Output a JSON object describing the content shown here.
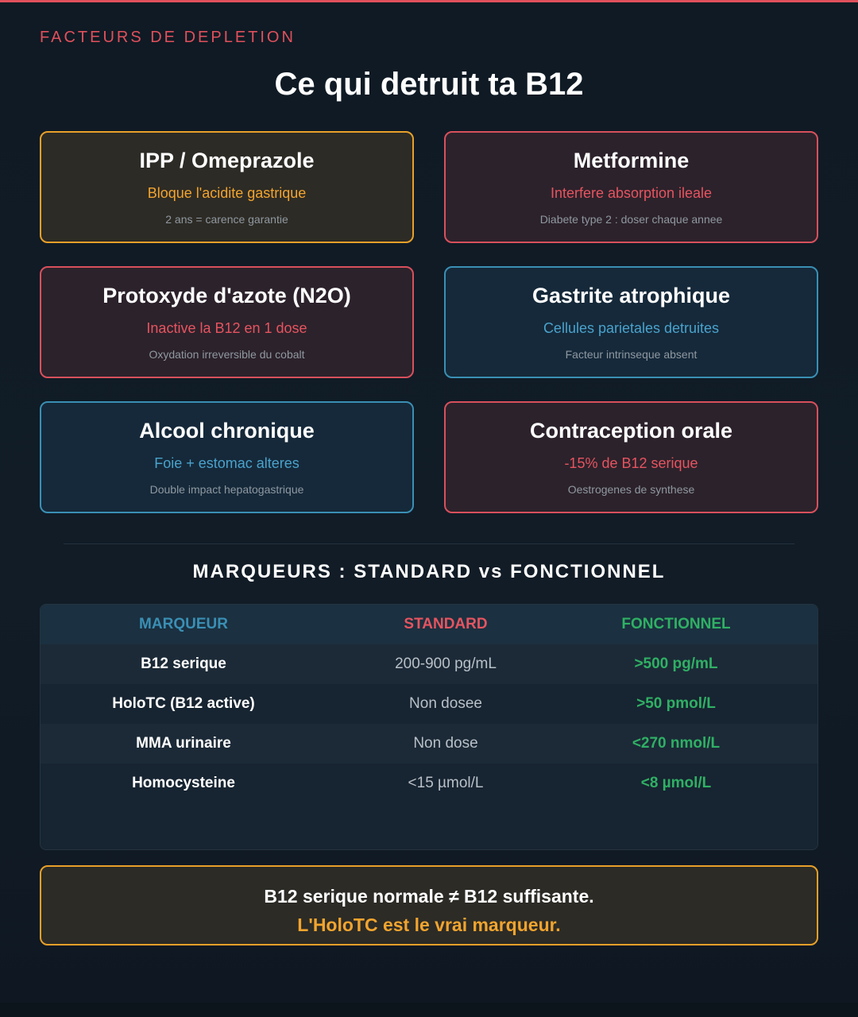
{
  "header": {
    "eyebrow": "FACTEURS DE DEPLETION",
    "title": "Ce qui detruit ta B12"
  },
  "cards": [
    {
      "title": "IPP / Omeprazole",
      "subtitle": "Bloque l'acidite gastrique",
      "note": "2 ans = carence garantie",
      "accent": "#e8a029"
    },
    {
      "title": "Metformine",
      "subtitle": "Interfere absorption ileale",
      "note": "Diabete type 2 : doser chaque annee",
      "accent": "#d8505c"
    },
    {
      "title": "Protoxyde d'azote (N2O)",
      "subtitle": "Inactive la B12 en 1 dose",
      "note": "Oxydation irreversible du cobalt",
      "accent": "#d8505c"
    },
    {
      "title": "Gastrite atrophique",
      "subtitle": "Cellules parietales detruites",
      "note": "Facteur intrinseque absent",
      "accent": "#3a8fb4"
    },
    {
      "title": "Alcool chronique",
      "subtitle": "Foie + estomac alteres",
      "note": "Double impact hepatogastrique",
      "accent": "#3a8fb4"
    },
    {
      "title": "Contraception orale",
      "subtitle": "-15% de B12 serique",
      "note": "Oestrogenes de synthese",
      "accent": "#d8505c"
    }
  ],
  "markers": {
    "section_title": "MARQUEURS : STANDARD vs FONCTIONNEL",
    "headers": [
      "MARQUEUR",
      "STANDARD",
      "FONCTIONNEL"
    ],
    "rows": [
      [
        "B12 serique",
        "200-900 pg/mL",
        ">500 pg/mL"
      ],
      [
        "HoloTC (B12 active)",
        "Non dosee",
        ">50 pmol/L"
      ],
      [
        "MMA urinaire",
        "Non dose",
        "<270 nmol/L"
      ],
      [
        "Homocysteine",
        "<15 µmol/L",
        "<8 µmol/L"
      ]
    ]
  },
  "callout": {
    "line1": "B12 serique normale ≠ B12 suffisante.",
    "line2": "L'HoloTC est le vrai marqueur."
  },
  "colors": {
    "red": "#e0505c",
    "orange": "#e8a029",
    "blue": "#3a8fb4",
    "green": "#2fb064",
    "background": "#111c27"
  }
}
